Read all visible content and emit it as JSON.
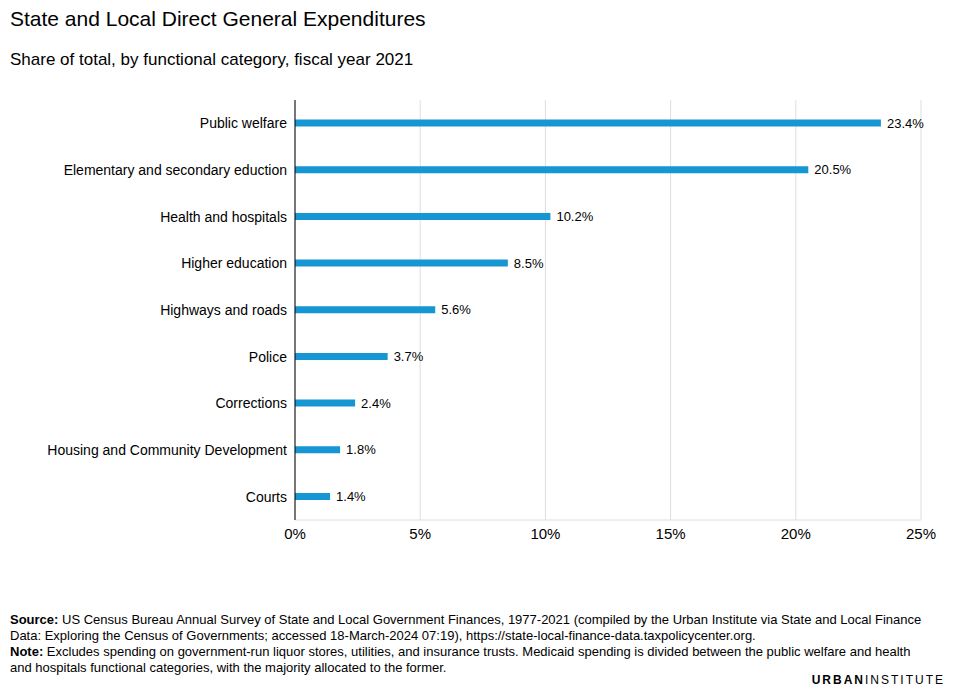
{
  "chart_data": {
    "type": "bar",
    "title": "State and Local Direct General Expenditures",
    "subtitle": "Share of total, by functional category, fiscal year 2021",
    "orientation": "horizontal",
    "categories": [
      "Public welfare",
      "Elementary and secondary eduction",
      "Health and hospitals",
      "Higher education",
      "Highways and roads",
      "Police",
      "Corrections",
      "Housing and Community Development",
      "Courts"
    ],
    "values": [
      23.4,
      20.5,
      10.2,
      8.5,
      5.6,
      3.7,
      2.4,
      1.8,
      1.4
    ],
    "value_labels": [
      "23.4%",
      "20.5%",
      "10.2%",
      "8.5%",
      "5.6%",
      "3.7%",
      "2.4%",
      "1.8%",
      "1.4%"
    ],
    "data_labels": true,
    "color": "#1696d2",
    "xlim": [
      0,
      25
    ],
    "xticks": [
      {
        "value": 0,
        "label": "0%"
      },
      {
        "value": 5,
        "label": "5%"
      },
      {
        "value": 10,
        "label": "10%"
      },
      {
        "value": 15,
        "label": "15%"
      },
      {
        "value": 20,
        "label": "20%"
      },
      {
        "value": 25,
        "label": "25%"
      }
    ],
    "grid": true,
    "source": "Source: US Census Bureau Annual Survey of State and Local Government Finances, 1977-2021 (compiled by the Urban Institute via State and Local Finance Data: Exploring the Census of Governments; accessed 18-March-2024 07:19), https://state-local-finance-data.taxpolicycenter.org.",
    "note": "Note: Excludes spending on government-run liquor stores, utilities, and insurance trusts. Medicaid spending is divided between the public welfare and health and hospitals functional categories, with the majority allocated to the former.",
    "logo": "URBAN INSTITUTE"
  }
}
